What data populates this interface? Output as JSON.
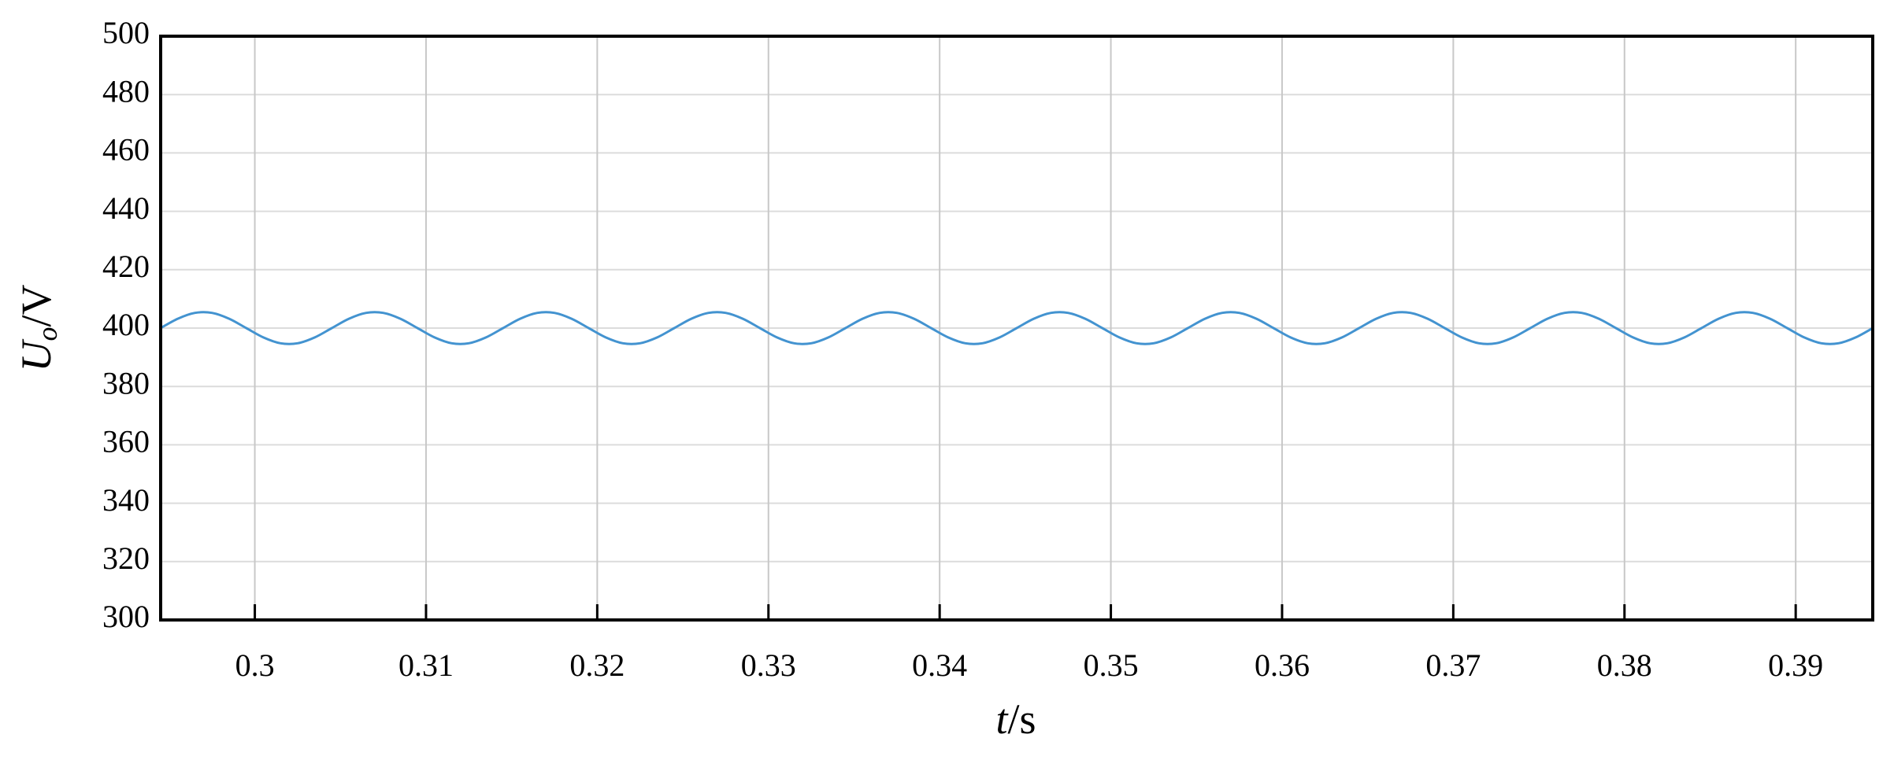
{
  "chart_data": {
    "type": "line",
    "xlabel": {
      "symbol": "t",
      "unit": "/s"
    },
    "ylabel": {
      "symbol": "U",
      "subscript": "o",
      "unit": "/V"
    },
    "xlim": [
      0.2945,
      0.3945
    ],
    "ylim": [
      300,
      500
    ],
    "xticks": [
      0.3,
      0.31,
      0.32,
      0.33,
      0.34,
      0.35,
      0.36,
      0.37,
      0.38,
      0.39
    ],
    "yticks": [
      300,
      320,
      340,
      360,
      380,
      400,
      420,
      440,
      460,
      480,
      500
    ],
    "grid": true,
    "x": [
      0.2945,
      0.2955,
      0.2965,
      0.2975,
      0.2985,
      0.2995,
      0.3005,
      0.3015,
      0.3025,
      0.3035,
      0.3045,
      0.3055,
      0.3065,
      0.3075,
      0.3085,
      0.3095,
      0.3105,
      0.3115,
      0.3125,
      0.3135,
      0.3145,
      0.3155,
      0.3165,
      0.3175,
      0.3185,
      0.3195,
      0.3205,
      0.3215,
      0.3225,
      0.3235,
      0.3245,
      0.3255,
      0.3265,
      0.3275,
      0.3285,
      0.3295,
      0.3305,
      0.3315,
      0.3325,
      0.3335,
      0.3345,
      0.3355,
      0.3365,
      0.3375,
      0.3385,
      0.3395,
      0.3405,
      0.3415,
      0.3425,
      0.3435,
      0.3445,
      0.3455,
      0.3465,
      0.3475,
      0.3485,
      0.3495,
      0.3505,
      0.3515,
      0.3525,
      0.3535,
      0.3545,
      0.3555,
      0.3565,
      0.3575,
      0.3585,
      0.3595,
      0.3605,
      0.3615,
      0.3625,
      0.3635,
      0.3645,
      0.3655,
      0.3665,
      0.3675,
      0.3685,
      0.3695,
      0.3705,
      0.3715,
      0.3725,
      0.3735,
      0.3745,
      0.3755,
      0.3765,
      0.3775,
      0.3785,
      0.3795,
      0.3805,
      0.3815,
      0.3825,
      0.3835,
      0.3845,
      0.3855,
      0.3865,
      0.3875,
      0.3885,
      0.3895,
      0.3905,
      0.3915,
      0.3925,
      0.3935,
      0.3945
    ],
    "series": [
      {
        "color": "#4393d0",
        "values": [
          400,
          403.2,
          405.2,
          405.2,
          403.2,
          400,
          396.8,
          394.8,
          394.8,
          396.8,
          400,
          403.2,
          405.2,
          405.2,
          403.2,
          400,
          396.8,
          394.8,
          394.8,
          396.8,
          400,
          403.2,
          405.2,
          405.2,
          403.2,
          400,
          396.8,
          394.8,
          394.8,
          396.8,
          400,
          403.2,
          405.2,
          405.2,
          403.2,
          400,
          396.8,
          394.8,
          394.8,
          396.8,
          400,
          403.2,
          405.2,
          405.2,
          403.2,
          400,
          396.8,
          394.8,
          394.8,
          396.8,
          400,
          403.2,
          405.2,
          405.2,
          403.2,
          400,
          396.8,
          394.8,
          394.8,
          396.8,
          400,
          403.2,
          405.2,
          405.2,
          403.2,
          400,
          396.8,
          394.8,
          394.8,
          396.8,
          400,
          403.2,
          405.2,
          405.2,
          403.2,
          400,
          396.8,
          394.8,
          394.8,
          396.8,
          400,
          403.2,
          405.2,
          405.2,
          403.2,
          400,
          396.8,
          394.8,
          394.8,
          396.8,
          400,
          403.2,
          405.2,
          405.2,
          403.2,
          400,
          396.8,
          394.8,
          394.8,
          396.8,
          400
        ]
      }
    ]
  }
}
